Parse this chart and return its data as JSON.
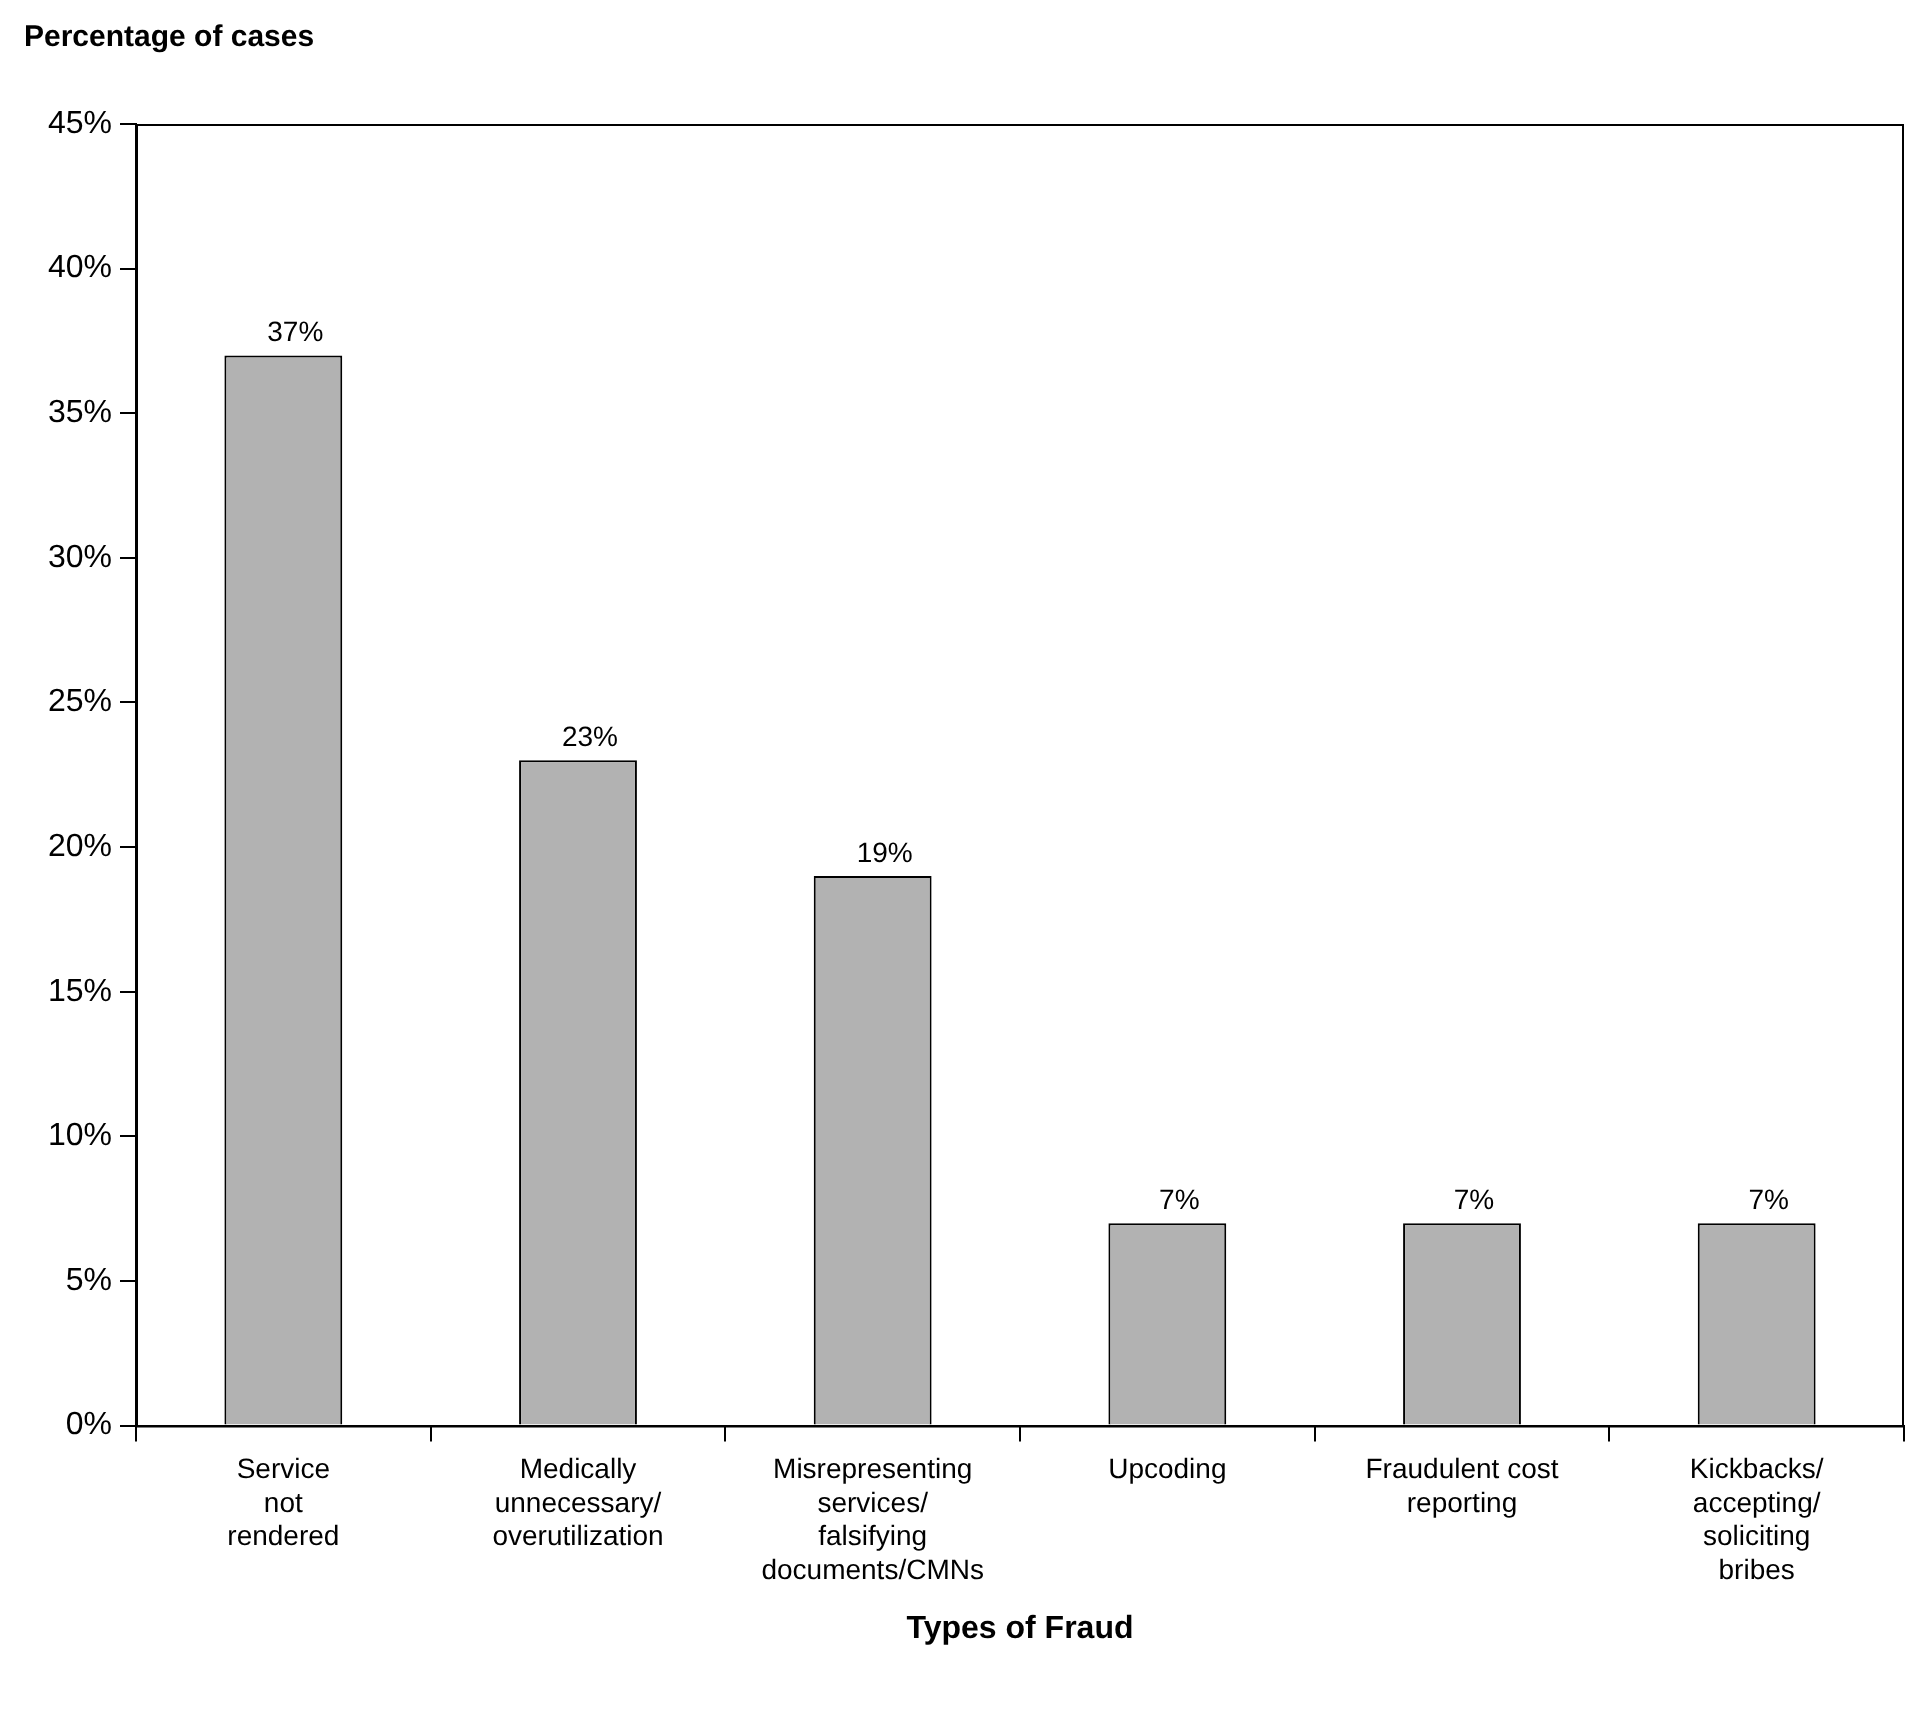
{
  "chart_data": {
    "type": "bar",
    "ylabel": "Percentage of cases",
    "xlabel": "Types of Fraud",
    "categories": [
      "Service\nnot\nrendered",
      "Medically\nunnecessary/\noverutilization",
      "Misrepresenting\nservices/\nfalsifying\ndocuments/CMNs",
      "Upcoding",
      "Fraudulent cost\nreporting",
      "Kickbacks/\naccepting/\nsoliciting\nbribes"
    ],
    "values": [
      37,
      23,
      19,
      7,
      7,
      7
    ],
    "value_labels": [
      "37%",
      "23%",
      "19%",
      "7%",
      "7%",
      "7%"
    ],
    "color": "#b2b2b2",
    "ylim": [
      0,
      45
    ],
    "yticks": [
      {
        "value": 0,
        "label": "0%"
      },
      {
        "value": 5,
        "label": "5%"
      },
      {
        "value": 10,
        "label": "10%"
      },
      {
        "value": 15,
        "label": "15%"
      },
      {
        "value": 20,
        "label": "20%"
      },
      {
        "value": 25,
        "label": "25%"
      },
      {
        "value": 30,
        "label": "30%"
      },
      {
        "value": 35,
        "label": "35%"
      },
      {
        "value": 40,
        "label": "40%"
      },
      {
        "value": 45,
        "label": "45%"
      }
    ],
    "grid": false,
    "legend": false
  }
}
